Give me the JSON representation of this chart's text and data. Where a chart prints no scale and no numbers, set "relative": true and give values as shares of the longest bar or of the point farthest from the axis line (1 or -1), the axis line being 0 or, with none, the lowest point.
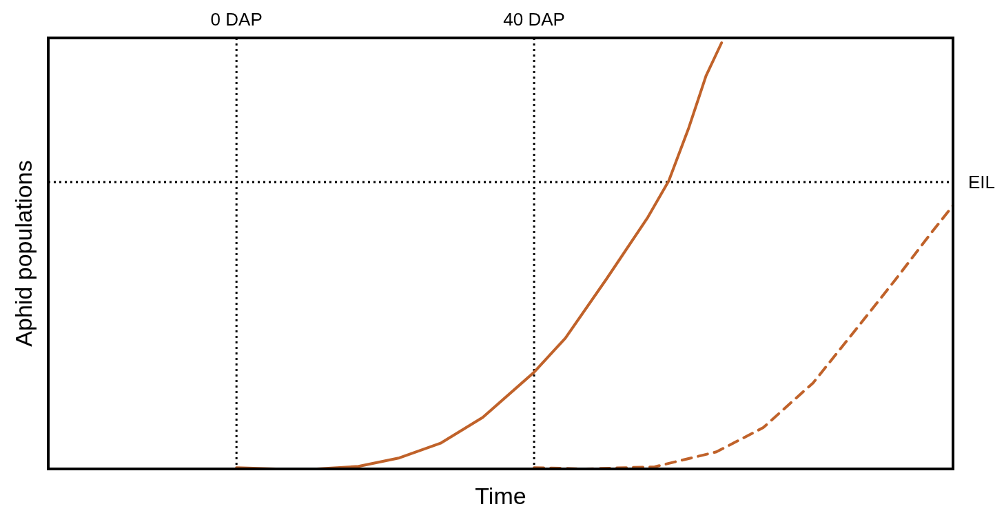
{
  "chart_data": {
    "type": "line",
    "xlabel": "Time",
    "ylabel": "Aphid populations",
    "relative": true,
    "tick_labels": "x",
    "grid": "x",
    "xlim": [
      -25.3,
      96.3
    ],
    "xticks": [
      {
        "value": 0,
        "label": "0 DAP"
      },
      {
        "value": 40,
        "label": "40 DAP"
      }
    ],
    "ref_lines": [
      {
        "axis": "y",
        "value": 0.673,
        "label": "EIL",
        "color": "#000000",
        "line_style": "dotted"
      }
    ],
    "series": [
      {
        "color": "#c0622a",
        "line_style": "solid",
        "x": [
          0,
          5.3,
          10.8,
          16.4,
          21.9,
          27.5,
          33.1,
          40,
          44.2,
          49.7,
          55.3,
          58.1,
          60.8,
          63.1,
          65.2
        ],
        "values": [
          0.003,
          0,
          0,
          0.006,
          0.026,
          0.061,
          0.121,
          0.227,
          0.307,
          0.445,
          0.591,
          0.676,
          0.801,
          0.922,
          1
        ]
      },
      {
        "color": "#c0622a",
        "line_style": "dashed",
        "x": [
          40,
          46.9,
          56.2,
          64.5,
          70.8,
          77.5,
          83.1,
          88.6,
          93.2,
          96.3
        ],
        "values": [
          0.003,
          0,
          0.005,
          0.04,
          0.097,
          0.202,
          0.324,
          0.445,
          0.55,
          0.618
        ]
      }
    ]
  }
}
